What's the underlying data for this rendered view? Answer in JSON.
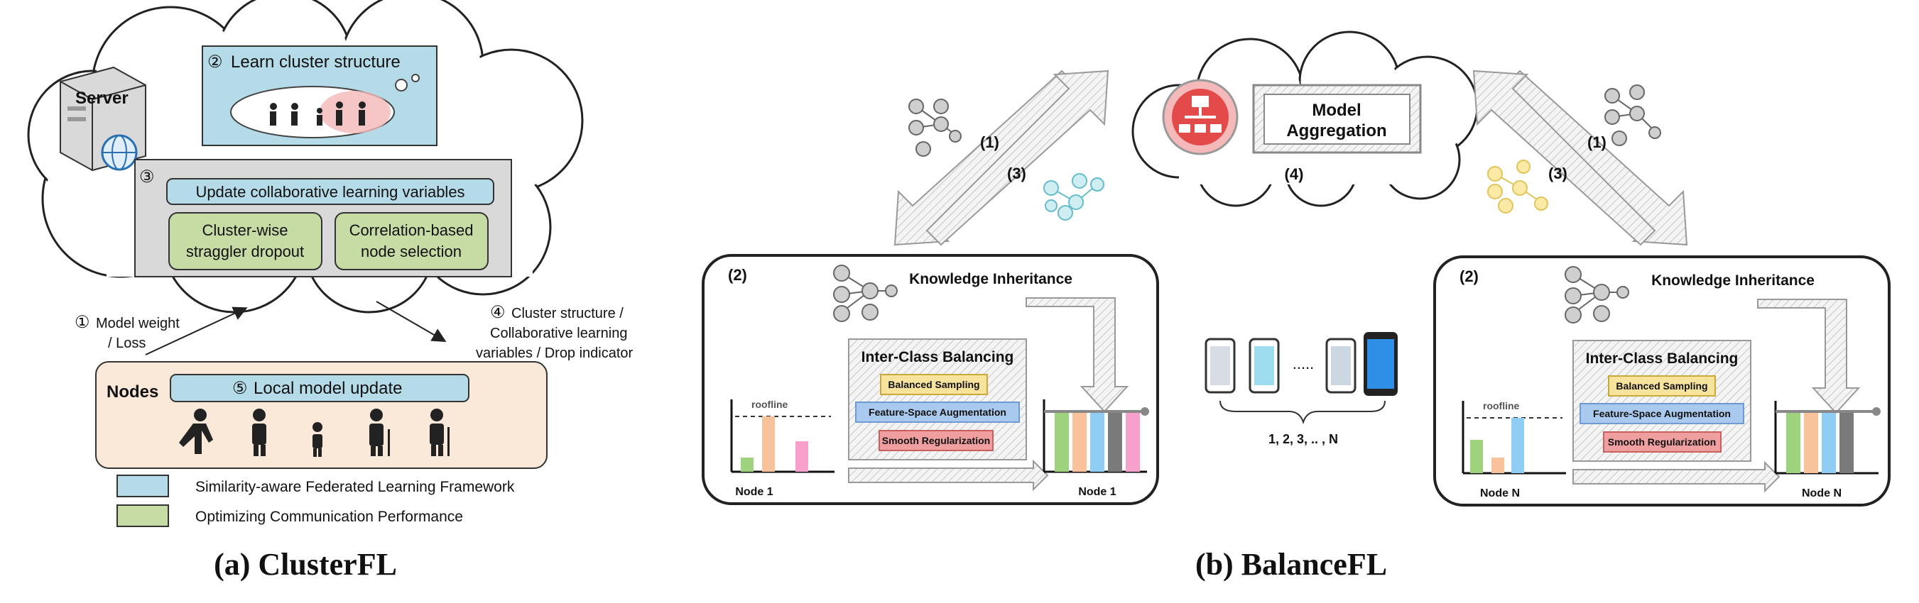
{
  "clusterfl": {
    "server_label": "Server",
    "step2": {
      "num": "②",
      "text": "Learn cluster structure"
    },
    "step3": {
      "num": "③",
      "header": "Update collaborative learning variables",
      "box_left": [
        "Cluster-wise",
        "straggler dropout"
      ],
      "box_right": [
        "Correlation-based",
        "node selection"
      ]
    },
    "arrow1": {
      "num": "①",
      "lines": [
        "Model weight",
        "/ Loss"
      ]
    },
    "arrow4": {
      "num": "④",
      "lines": [
        "Cluster structure /",
        "Collaborative learning",
        "variables / Drop indicator"
      ]
    },
    "nodes_label": "Nodes",
    "step5": {
      "num": "⑤",
      "text": "Local model update"
    },
    "legend": [
      {
        "color": "#b5dbe8",
        "text": "Similarity-aware Federated Learning Framework"
      },
      {
        "color": "#c7dca5",
        "text": "Optimizing Communication Performance"
      }
    ],
    "caption": "(a) ClusterFL"
  },
  "balancefl": {
    "left_arrows": {
      "down": "(1)",
      "up": "(3)"
    },
    "right_arrows": {
      "down": "(1)",
      "up": "(3)"
    },
    "cloud": {
      "lines": [
        "Model",
        "Aggregation"
      ],
      "step": "(4)"
    },
    "panel_left": {
      "step": "(2)",
      "title": "Knowledge Inheritance",
      "icb": "Inter-Class Balancing",
      "items": [
        "Balanced Sampling",
        "Feature-Space Augmentation",
        "Smooth Regularization"
      ],
      "roofline": "roofline",
      "node_in": "Node 1",
      "node_out": "Node 1"
    },
    "panel_right": {
      "step": "(2)",
      "title": "Knowledge Inheritance",
      "icb": "Inter-Class Balancing",
      "items": [
        "Balanced Sampling",
        "Feature-Space Augmentation",
        "Smooth Regularization"
      ],
      "roofline": "roofline",
      "node_in": "Node N",
      "node_out": "Node N"
    },
    "devices": {
      "dots": ".....",
      "range": "1, 2, 3, .. , N"
    },
    "caption": "(b) BalanceFL"
  },
  "colors": {
    "blue_box": "#b5dbe8",
    "green_box": "#c7dca5",
    "nodes_bg": "#fae8d9",
    "gray_box": "#d9d9d9"
  }
}
